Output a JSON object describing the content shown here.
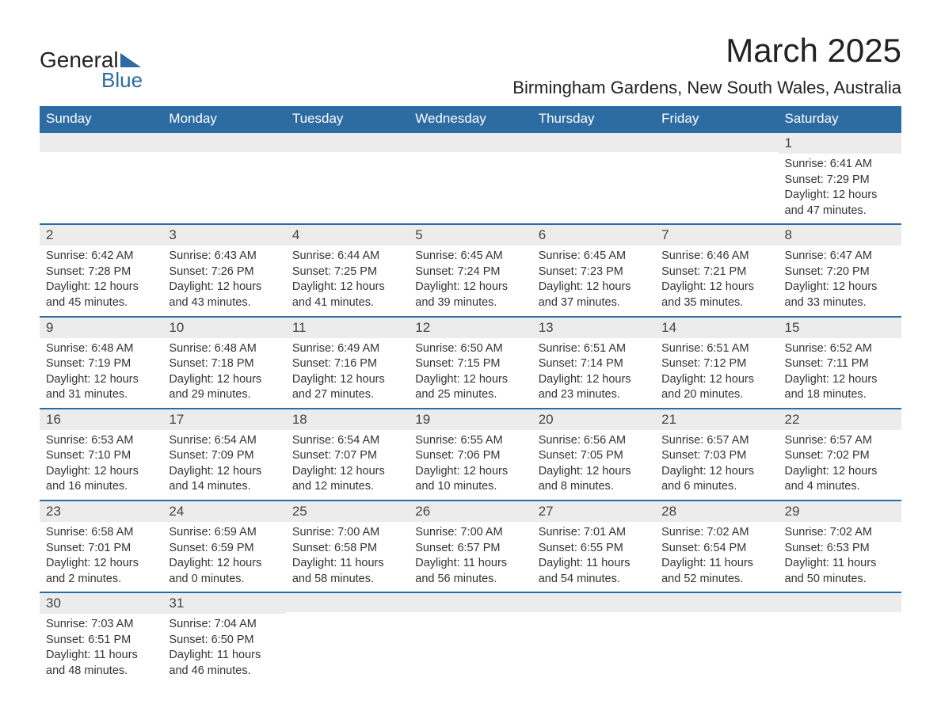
{
  "logo": {
    "word1": "General",
    "word2": "Blue"
  },
  "title": "March 2025",
  "location": "Birmingham Gardens, New South Wales, Australia",
  "columns": [
    "Sunday",
    "Monday",
    "Tuesday",
    "Wednesday",
    "Thursday",
    "Friday",
    "Saturday"
  ],
  "colors": {
    "header_bg": "#2d6ca2",
    "header_text": "#ffffff",
    "daynum_bg": "#ececec",
    "row_border": "#2d6ca2",
    "body_text": "#333333",
    "logo_blue": "#2d6ca2"
  },
  "typography": {
    "title_fontsize": 42,
    "location_fontsize": 22,
    "header_fontsize": 17,
    "daynum_fontsize": 17,
    "cell_fontsize": 14.5
  },
  "weeks": [
    [
      {
        "n": "",
        "lines": []
      },
      {
        "n": "",
        "lines": []
      },
      {
        "n": "",
        "lines": []
      },
      {
        "n": "",
        "lines": []
      },
      {
        "n": "",
        "lines": []
      },
      {
        "n": "",
        "lines": []
      },
      {
        "n": "1",
        "lines": [
          "Sunrise: 6:41 AM",
          "Sunset: 7:29 PM",
          "Daylight: 12 hours and 47 minutes."
        ]
      }
    ],
    [
      {
        "n": "2",
        "lines": [
          "Sunrise: 6:42 AM",
          "Sunset: 7:28 PM",
          "Daylight: 12 hours and 45 minutes."
        ]
      },
      {
        "n": "3",
        "lines": [
          "Sunrise: 6:43 AM",
          "Sunset: 7:26 PM",
          "Daylight: 12 hours and 43 minutes."
        ]
      },
      {
        "n": "4",
        "lines": [
          "Sunrise: 6:44 AM",
          "Sunset: 7:25 PM",
          "Daylight: 12 hours and 41 minutes."
        ]
      },
      {
        "n": "5",
        "lines": [
          "Sunrise: 6:45 AM",
          "Sunset: 7:24 PM",
          "Daylight: 12 hours and 39 minutes."
        ]
      },
      {
        "n": "6",
        "lines": [
          "Sunrise: 6:45 AM",
          "Sunset: 7:23 PM",
          "Daylight: 12 hours and 37 minutes."
        ]
      },
      {
        "n": "7",
        "lines": [
          "Sunrise: 6:46 AM",
          "Sunset: 7:21 PM",
          "Daylight: 12 hours and 35 minutes."
        ]
      },
      {
        "n": "8",
        "lines": [
          "Sunrise: 6:47 AM",
          "Sunset: 7:20 PM",
          "Daylight: 12 hours and 33 minutes."
        ]
      }
    ],
    [
      {
        "n": "9",
        "lines": [
          "Sunrise: 6:48 AM",
          "Sunset: 7:19 PM",
          "Daylight: 12 hours and 31 minutes."
        ]
      },
      {
        "n": "10",
        "lines": [
          "Sunrise: 6:48 AM",
          "Sunset: 7:18 PM",
          "Daylight: 12 hours and 29 minutes."
        ]
      },
      {
        "n": "11",
        "lines": [
          "Sunrise: 6:49 AM",
          "Sunset: 7:16 PM",
          "Daylight: 12 hours and 27 minutes."
        ]
      },
      {
        "n": "12",
        "lines": [
          "Sunrise: 6:50 AM",
          "Sunset: 7:15 PM",
          "Daylight: 12 hours and 25 minutes."
        ]
      },
      {
        "n": "13",
        "lines": [
          "Sunrise: 6:51 AM",
          "Sunset: 7:14 PM",
          "Daylight: 12 hours and 23 minutes."
        ]
      },
      {
        "n": "14",
        "lines": [
          "Sunrise: 6:51 AM",
          "Sunset: 7:12 PM",
          "Daylight: 12 hours and 20 minutes."
        ]
      },
      {
        "n": "15",
        "lines": [
          "Sunrise: 6:52 AM",
          "Sunset: 7:11 PM",
          "Daylight: 12 hours and 18 minutes."
        ]
      }
    ],
    [
      {
        "n": "16",
        "lines": [
          "Sunrise: 6:53 AM",
          "Sunset: 7:10 PM",
          "Daylight: 12 hours and 16 minutes."
        ]
      },
      {
        "n": "17",
        "lines": [
          "Sunrise: 6:54 AM",
          "Sunset: 7:09 PM",
          "Daylight: 12 hours and 14 minutes."
        ]
      },
      {
        "n": "18",
        "lines": [
          "Sunrise: 6:54 AM",
          "Sunset: 7:07 PM",
          "Daylight: 12 hours and 12 minutes."
        ]
      },
      {
        "n": "19",
        "lines": [
          "Sunrise: 6:55 AM",
          "Sunset: 7:06 PM",
          "Daylight: 12 hours and 10 minutes."
        ]
      },
      {
        "n": "20",
        "lines": [
          "Sunrise: 6:56 AM",
          "Sunset: 7:05 PM",
          "Daylight: 12 hours and 8 minutes."
        ]
      },
      {
        "n": "21",
        "lines": [
          "Sunrise: 6:57 AM",
          "Sunset: 7:03 PM",
          "Daylight: 12 hours and 6 minutes."
        ]
      },
      {
        "n": "22",
        "lines": [
          "Sunrise: 6:57 AM",
          "Sunset: 7:02 PM",
          "Daylight: 12 hours and 4 minutes."
        ]
      }
    ],
    [
      {
        "n": "23",
        "lines": [
          "Sunrise: 6:58 AM",
          "Sunset: 7:01 PM",
          "Daylight: 12 hours and 2 minutes."
        ]
      },
      {
        "n": "24",
        "lines": [
          "Sunrise: 6:59 AM",
          "Sunset: 6:59 PM",
          "Daylight: 12 hours and 0 minutes."
        ]
      },
      {
        "n": "25",
        "lines": [
          "Sunrise: 7:00 AM",
          "Sunset: 6:58 PM",
          "Daylight: 11 hours and 58 minutes."
        ]
      },
      {
        "n": "26",
        "lines": [
          "Sunrise: 7:00 AM",
          "Sunset: 6:57 PM",
          "Daylight: 11 hours and 56 minutes."
        ]
      },
      {
        "n": "27",
        "lines": [
          "Sunrise: 7:01 AM",
          "Sunset: 6:55 PM",
          "Daylight: 11 hours and 54 minutes."
        ]
      },
      {
        "n": "28",
        "lines": [
          "Sunrise: 7:02 AM",
          "Sunset: 6:54 PM",
          "Daylight: 11 hours and 52 minutes."
        ]
      },
      {
        "n": "29",
        "lines": [
          "Sunrise: 7:02 AM",
          "Sunset: 6:53 PM",
          "Daylight: 11 hours and 50 minutes."
        ]
      }
    ],
    [
      {
        "n": "30",
        "lines": [
          "Sunrise: 7:03 AM",
          "Sunset: 6:51 PM",
          "Daylight: 11 hours and 48 minutes."
        ]
      },
      {
        "n": "31",
        "lines": [
          "Sunrise: 7:04 AM",
          "Sunset: 6:50 PM",
          "Daylight: 11 hours and 46 minutes."
        ]
      },
      {
        "n": "",
        "lines": []
      },
      {
        "n": "",
        "lines": []
      },
      {
        "n": "",
        "lines": []
      },
      {
        "n": "",
        "lines": []
      },
      {
        "n": "",
        "lines": []
      }
    ]
  ]
}
